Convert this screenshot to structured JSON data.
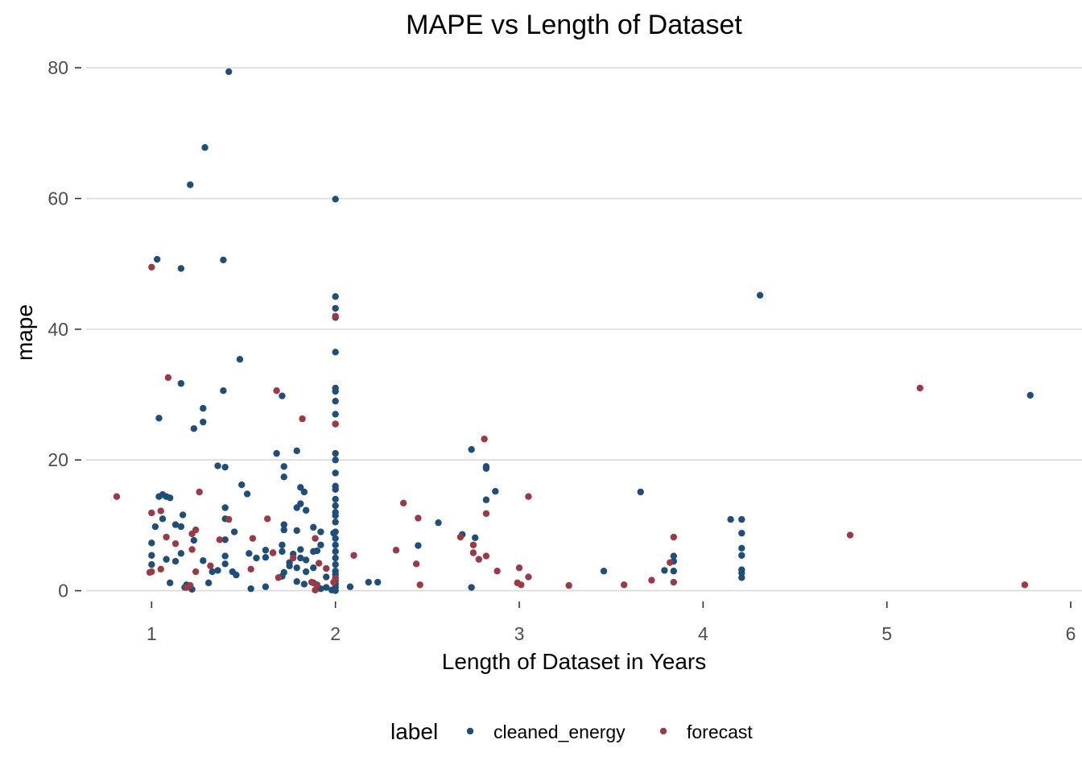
{
  "chart_data": {
    "type": "scatter",
    "title": "MAPE vs Length of Dataset",
    "xlabel": "Length of Dataset in Years",
    "ylabel": "mape",
    "xlim": [
      0.6,
      6.0
    ],
    "ylim": [
      -3.5,
      81.5
    ],
    "x_ticks": [
      "1",
      "2",
      "3",
      "4",
      "5",
      "6"
    ],
    "y_ticks": [
      "0",
      "20",
      "40",
      "60",
      "80"
    ],
    "grid": "horizontal",
    "legend": {
      "title": "label",
      "position": "bottom"
    },
    "series": [
      {
        "name": "cleaned_energy",
        "color": "#1f4e79",
        "points": [
          [
            1.42,
            79.4
          ],
          [
            1.29,
            67.8
          ],
          [
            1.21,
            62.1
          ],
          [
            2.0,
            59.9
          ],
          [
            1.03,
            50.7
          ],
          [
            1.16,
            49.3
          ],
          [
            1.39,
            50.6
          ],
          [
            4.31,
            45.2
          ],
          [
            2.0,
            45.0
          ],
          [
            2.0,
            43.2
          ],
          [
            2.0,
            41.8
          ],
          [
            2.0,
            36.5
          ],
          [
            1.48,
            35.4
          ],
          [
            1.16,
            31.7
          ],
          [
            1.39,
            30.6
          ],
          [
            1.71,
            29.8
          ],
          [
            2.0,
            31.0
          ],
          [
            2.0,
            30.5
          ],
          [
            2.0,
            29.0
          ],
          [
            5.78,
            29.9
          ],
          [
            1.28,
            27.9
          ],
          [
            2.0,
            27.0
          ],
          [
            1.04,
            26.4
          ],
          [
            1.28,
            25.8
          ],
          [
            2.0,
            25.5
          ],
          [
            1.23,
            24.8
          ],
          [
            2.74,
            21.6
          ],
          [
            1.68,
            21.0
          ],
          [
            1.79,
            21.4
          ],
          [
            2.0,
            21.0
          ],
          [
            2.0,
            20.0
          ],
          [
            1.36,
            19.1
          ],
          [
            1.4,
            18.9
          ],
          [
            1.72,
            19.0
          ],
          [
            2.82,
            19.0
          ],
          [
            2.82,
            18.7
          ],
          [
            2.0,
            18.0
          ],
          [
            1.72,
            17.4
          ],
          [
            1.49,
            16.2
          ],
          [
            1.81,
            15.8
          ],
          [
            2.0,
            16.0
          ],
          [
            2.0,
            15.5
          ],
          [
            1.04,
            14.4
          ],
          [
            1.06,
            14.7
          ],
          [
            1.08,
            14.4
          ],
          [
            1.1,
            14.2
          ],
          [
            1.52,
            14.8
          ],
          [
            1.83,
            15.1
          ],
          [
            2.87,
            15.2
          ],
          [
            3.66,
            15.1
          ],
          [
            2.0,
            14.0
          ],
          [
            2.82,
            13.9
          ],
          [
            1.4,
            12.7
          ],
          [
            1.79,
            12.7
          ],
          [
            1.81,
            13.3
          ],
          [
            1.84,
            12.3
          ],
          [
            2.0,
            13.0
          ],
          [
            2.0,
            12.0
          ],
          [
            1.02,
            9.8
          ],
          [
            1.06,
            11.0
          ],
          [
            1.13,
            10.1
          ],
          [
            1.16,
            9.8
          ],
          [
            1.17,
            11.6
          ],
          [
            1.4,
            11.0
          ],
          [
            1.72,
            10.1
          ],
          [
            1.72,
            9.3
          ],
          [
            1.79,
            9.2
          ],
          [
            1.88,
            9.7
          ],
          [
            1.92,
            9.0
          ],
          [
            1.99,
            8.8
          ],
          [
            2.0,
            10.5
          ],
          [
            2.0,
            11.5
          ],
          [
            2.56,
            10.4
          ],
          [
            4.15,
            10.9
          ],
          [
            4.21,
            10.9
          ],
          [
            4.21,
            8.8
          ],
          [
            1.0,
            7.3
          ],
          [
            1.23,
            7.7
          ],
          [
            1.4,
            7.8
          ],
          [
            1.45,
            9.0
          ],
          [
            1.62,
            6.2
          ],
          [
            1.71,
            7.0
          ],
          [
            1.81,
            6.3
          ],
          [
            1.92,
            7.0
          ],
          [
            2.0,
            9.0
          ],
          [
            2.0,
            8.0
          ],
          [
            2.0,
            7.0
          ],
          [
            2.45,
            6.9
          ],
          [
            2.69,
            8.6
          ],
          [
            2.76,
            8.1
          ],
          [
            4.21,
            6.5
          ],
          [
            3.84,
            5.3
          ],
          [
            1.0,
            5.4
          ],
          [
            1.0,
            4.0
          ],
          [
            1.08,
            4.8
          ],
          [
            1.13,
            4.5
          ],
          [
            1.16,
            5.7
          ],
          [
            1.28,
            4.6
          ],
          [
            1.4,
            5.3
          ],
          [
            1.4,
            4.1
          ],
          [
            1.53,
            5.7
          ],
          [
            1.57,
            5.0
          ],
          [
            1.62,
            5.1
          ],
          [
            1.66,
            5.8
          ],
          [
            1.71,
            6.0
          ],
          [
            1.75,
            4.3
          ],
          [
            1.77,
            5.6
          ],
          [
            1.81,
            5.0
          ],
          [
            1.84,
            4.7
          ],
          [
            1.88,
            6.0
          ],
          [
            1.9,
            6.1
          ],
          [
            2.0,
            6.0
          ],
          [
            2.0,
            5.0
          ],
          [
            2.0,
            4.0
          ],
          [
            3.84,
            4.5
          ],
          [
            4.21,
            5.4
          ],
          [
            1.44,
            2.9
          ],
          [
            1.46,
            2.4
          ],
          [
            1.33,
            2.9
          ],
          [
            1.36,
            3.1
          ],
          [
            1.72,
            2.8
          ],
          [
            1.71,
            2.2
          ],
          [
            1.75,
            3.8
          ],
          [
            1.79,
            3.5
          ],
          [
            1.84,
            2.9
          ],
          [
            1.88,
            3.5
          ],
          [
            1.95,
            2.1
          ],
          [
            2.0,
            3.0
          ],
          [
            2.0,
            2.5
          ],
          [
            2.0,
            2.0
          ],
          [
            3.46,
            3.0
          ],
          [
            3.79,
            3.1
          ],
          [
            3.84,
            3.0
          ],
          [
            4.21,
            3.2
          ],
          [
            4.21,
            2.7
          ],
          [
            4.21,
            2.0
          ],
          [
            1.1,
            1.2
          ],
          [
            1.18,
            0.5
          ],
          [
            1.19,
            0.9
          ],
          [
            1.22,
            0.2
          ],
          [
            1.31,
            1.2
          ],
          [
            1.54,
            0.3
          ],
          [
            1.62,
            0.6
          ],
          [
            1.79,
            1.4
          ],
          [
            1.83,
            1.0
          ],
          [
            1.88,
            1.2
          ],
          [
            1.92,
            0.3
          ],
          [
            1.95,
            0.5
          ],
          [
            1.98,
            0.1
          ],
          [
            2.0,
            1.5
          ],
          [
            2.0,
            1.0
          ],
          [
            2.0,
            0.5
          ],
          [
            2.0,
            0.0
          ],
          [
            2.08,
            0.6
          ],
          [
            2.18,
            1.3
          ],
          [
            2.23,
            1.3
          ],
          [
            2.74,
            0.5
          ]
        ]
      },
      {
        "name": "forecast",
        "color": "#9b3a45",
        "points": [
          [
            1.0,
            49.5
          ],
          [
            2.0,
            42.0
          ],
          [
            1.09,
            32.6
          ],
          [
            1.68,
            30.6
          ],
          [
            5.18,
            31.0
          ],
          [
            1.82,
            26.3
          ],
          [
            2.0,
            25.5
          ],
          [
            2.81,
            23.2
          ],
          [
            0.81,
            14.4
          ],
          [
            1.26,
            15.1
          ],
          [
            3.05,
            14.4
          ],
          [
            2.37,
            13.4
          ],
          [
            1.0,
            11.9
          ],
          [
            1.05,
            12.2
          ],
          [
            1.42,
            10.9
          ],
          [
            1.63,
            11.0
          ],
          [
            2.45,
            11.1
          ],
          [
            2.82,
            11.8
          ],
          [
            1.24,
            9.3
          ],
          [
            1.22,
            8.7
          ],
          [
            1.08,
            8.2
          ],
          [
            1.55,
            8.0
          ],
          [
            1.89,
            8.0
          ],
          [
            2.68,
            8.2
          ],
          [
            3.84,
            8.2
          ],
          [
            4.8,
            8.5
          ],
          [
            1.13,
            7.2
          ],
          [
            1.37,
            7.8
          ],
          [
            2.75,
            7.0
          ],
          [
            2.75,
            5.8
          ],
          [
            2.78,
            4.8
          ],
          [
            2.82,
            5.3
          ],
          [
            2.33,
            6.2
          ],
          [
            2.1,
            5.4
          ],
          [
            1.22,
            6.3
          ],
          [
            1.66,
            5.8
          ],
          [
            1.77,
            5.0
          ],
          [
            1.91,
            4.2
          ],
          [
            2.44,
            4.1
          ],
          [
            3.82,
            4.3
          ],
          [
            3.0,
            3.5
          ],
          [
            2.88,
            3.0
          ],
          [
            1.05,
            3.3
          ],
          [
            0.99,
            2.8
          ],
          [
            1.0,
            2.9
          ],
          [
            1.24,
            2.9
          ],
          [
            1.32,
            3.8
          ],
          [
            1.54,
            3.3
          ],
          [
            1.69,
            2.0
          ],
          [
            1.95,
            3.4
          ],
          [
            1.87,
            1.3
          ],
          [
            1.9,
            0.9
          ],
          [
            1.99,
            1.3
          ],
          [
            2.0,
            1.9
          ],
          [
            3.05,
            2.1
          ],
          [
            3.72,
            1.6
          ],
          [
            1.19,
            0.5
          ],
          [
            1.21,
            0.8
          ],
          [
            1.89,
            0.1
          ],
          [
            2.46,
            0.9
          ],
          [
            2.99,
            1.2
          ],
          [
            3.01,
            0.9
          ],
          [
            3.27,
            0.8
          ],
          [
            3.57,
            0.9
          ],
          [
            3.84,
            1.3
          ],
          [
            5.75,
            0.9
          ]
        ]
      }
    ]
  }
}
